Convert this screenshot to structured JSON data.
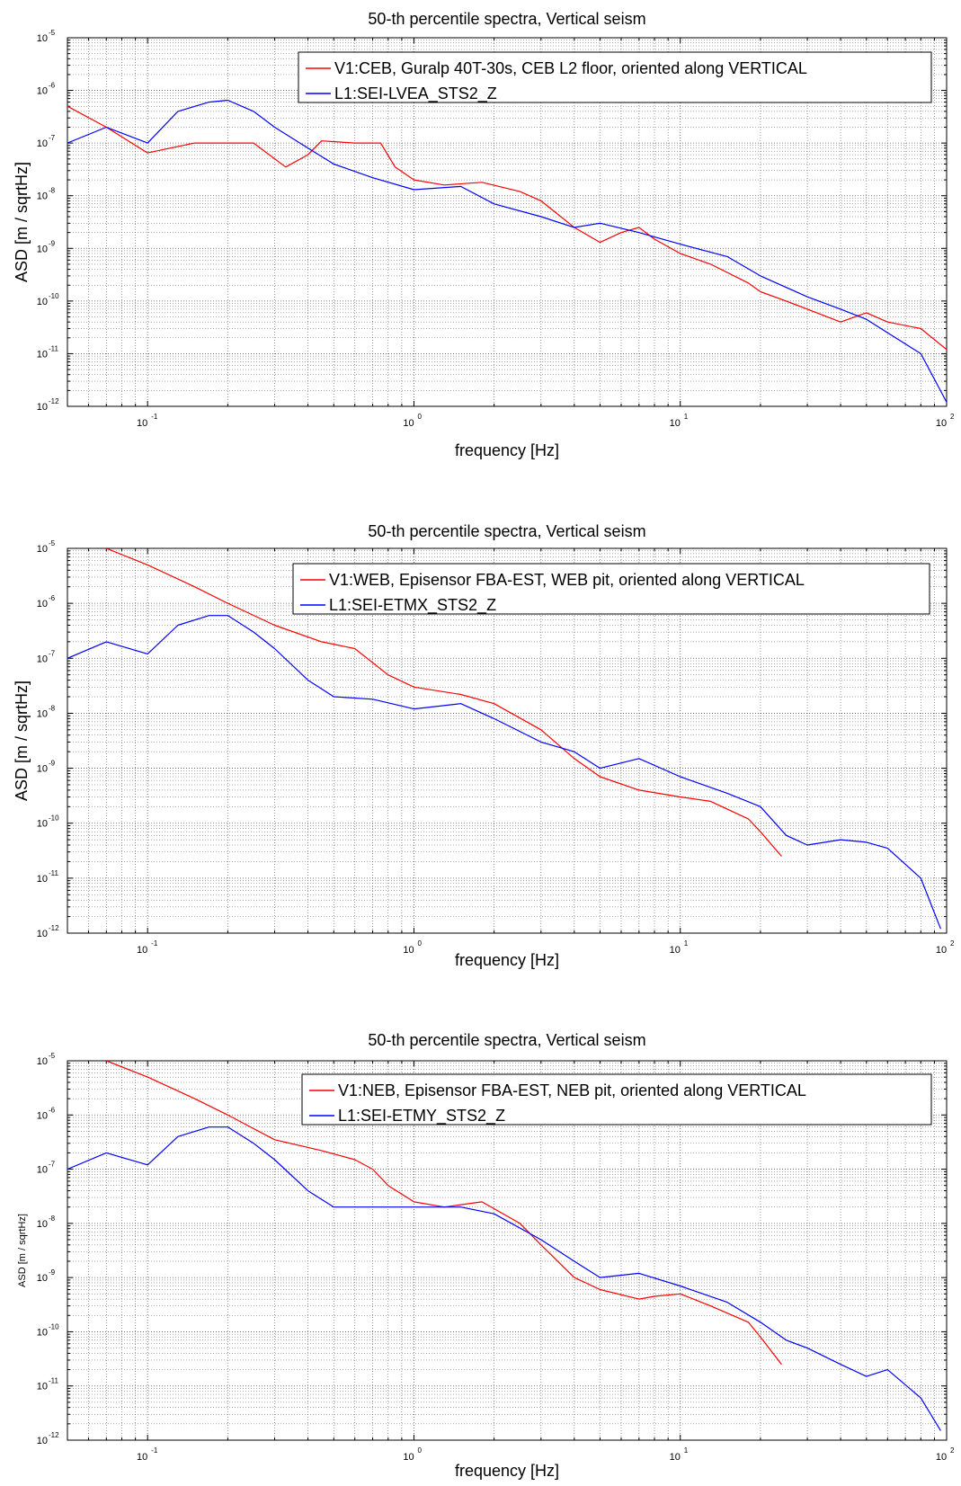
{
  "chart_data": [
    {
      "type": "line",
      "title": "50-th percentile spectra, Vertical seism",
      "xlabel": "frequency [Hz]",
      "ylabel": "ASD [m / sqrtHz]",
      "xscale": "log",
      "yscale": "log",
      "xlim": [
        0.05,
        100
      ],
      "ylim": [
        1e-12,
        1e-05
      ],
      "xticks": [
        {
          "base": "10",
          "exp": "-1"
        },
        {
          "base": "10",
          "exp": "0"
        },
        {
          "base": "10",
          "exp": "1"
        },
        {
          "base": "10",
          "exp": "2"
        }
      ],
      "yticks": [
        {
          "base": "10",
          "exp": "-5"
        },
        {
          "base": "10",
          "exp": "-6"
        },
        {
          "base": "10",
          "exp": "-7"
        },
        {
          "base": "10",
          "exp": "-8"
        },
        {
          "base": "10",
          "exp": "-9"
        },
        {
          "base": "10",
          "exp": "-10"
        },
        {
          "base": "10",
          "exp": "-11"
        },
        {
          "base": "10",
          "exp": "-12"
        }
      ],
      "grid": true,
      "legend_position": "top-right",
      "series": [
        {
          "name": "V1:CEB, Guralp 40T-30s, CEB L2 floor, oriented along VERTICAL",
          "color": "#ff0000",
          "x": [
            0.05,
            0.07,
            0.1,
            0.15,
            0.2,
            0.25,
            0.33,
            0.4,
            0.45,
            0.6,
            0.75,
            0.85,
            1.0,
            1.3,
            1.8,
            2.5,
            3.0,
            4.0,
            5.0,
            6.0,
            7.0,
            8.0,
            10,
            13,
            18,
            20,
            25,
            30,
            40,
            50,
            60,
            80,
            100
          ],
          "y": [
            5e-07,
            2e-07,
            6.5e-08,
            1e-07,
            1e-07,
            1e-07,
            3.5e-08,
            6e-08,
            1.1e-07,
            1e-07,
            1e-07,
            3.5e-08,
            2e-08,
            1.6e-08,
            1.8e-08,
            1.2e-08,
            8e-09,
            2.5e-09,
            1.3e-09,
            2e-09,
            2.5e-09,
            1.5e-09,
            8e-10,
            5e-10,
            2.2e-10,
            1.5e-10,
            1e-10,
            7e-11,
            4e-11,
            6e-11,
            4e-11,
            3e-11,
            1.2e-11
          ]
        },
        {
          "name": "L1:SEI-LVEA_STS2_Z",
          "color": "#0000ff",
          "x": [
            0.05,
            0.07,
            0.1,
            0.13,
            0.17,
            0.2,
            0.25,
            0.3,
            0.4,
            0.5,
            0.7,
            1.0,
            1.5,
            2.0,
            3.0,
            4.0,
            5.0,
            7.0,
            10,
            15,
            20,
            30,
            40,
            50,
            60,
            80,
            100
          ],
          "y": [
            1e-07,
            2e-07,
            1e-07,
            4e-07,
            6e-07,
            6.5e-07,
            4e-07,
            2e-07,
            8e-08,
            4e-08,
            2.2e-08,
            1.3e-08,
            1.5e-08,
            7e-09,
            4e-09,
            2.5e-09,
            3e-09,
            2e-09,
            1.2e-09,
            7e-10,
            3e-10,
            1.2e-10,
            7e-11,
            4.5e-11,
            2.5e-11,
            1e-11,
            1.2e-12
          ]
        }
      ]
    },
    {
      "type": "line",
      "title": "50-th percentile spectra, Vertical seism",
      "xlabel": "frequency [Hz]",
      "ylabel": "ASD [m / sqrtHz]",
      "xscale": "log",
      "yscale": "log",
      "xlim": [
        0.05,
        100
      ],
      "ylim": [
        1e-12,
        1e-05
      ],
      "xticks": [
        {
          "base": "10",
          "exp": "-1"
        },
        {
          "base": "10",
          "exp": "0"
        },
        {
          "base": "10",
          "exp": "1"
        },
        {
          "base": "10",
          "exp": "2"
        }
      ],
      "yticks": [
        {
          "base": "10",
          "exp": "-5"
        },
        {
          "base": "10",
          "exp": "-6"
        },
        {
          "base": "10",
          "exp": "-7"
        },
        {
          "base": "10",
          "exp": "-8"
        },
        {
          "base": "10",
          "exp": "-9"
        },
        {
          "base": "10",
          "exp": "-10"
        },
        {
          "base": "10",
          "exp": "-11"
        },
        {
          "base": "10",
          "exp": "-12"
        }
      ],
      "grid": true,
      "legend_position": "top-right",
      "series": [
        {
          "name": "V1:WEB, Episensor FBA-EST, WEB pit, oriented along VERTICAL",
          "color": "#ff0000",
          "x": [
            0.07,
            0.1,
            0.15,
            0.2,
            0.3,
            0.45,
            0.6,
            0.8,
            1.0,
            1.5,
            2.0,
            3.0,
            4.0,
            5.0,
            7.0,
            10,
            13,
            18,
            20,
            24
          ],
          "y": [
            1e-05,
            5e-06,
            2e-06,
            1e-06,
            4e-07,
            2e-07,
            1.5e-07,
            5e-08,
            3e-08,
            2.2e-08,
            1.5e-08,
            5e-09,
            1.5e-09,
            7e-10,
            4e-10,
            3e-10,
            2.5e-10,
            1.2e-10,
            7e-11,
            2.5e-11
          ]
        },
        {
          "name": "L1:SEI-ETMX_STS2_Z",
          "color": "#0000ff",
          "x": [
            0.05,
            0.07,
            0.1,
            0.13,
            0.17,
            0.2,
            0.25,
            0.3,
            0.4,
            0.5,
            0.7,
            1.0,
            1.5,
            2.0,
            3.0,
            4.0,
            5.0,
            7.0,
            10,
            15,
            20,
            25,
            30,
            40,
            50,
            60,
            80,
            95
          ],
          "y": [
            1e-07,
            2e-07,
            1.2e-07,
            4e-07,
            6e-07,
            6e-07,
            3e-07,
            1.5e-07,
            4e-08,
            2e-08,
            1.8e-08,
            1.2e-08,
            1.5e-08,
            8e-09,
            3e-09,
            2e-09,
            1e-09,
            1.5e-09,
            7e-10,
            3.5e-10,
            2e-10,
            6e-11,
            4e-11,
            5e-11,
            4.5e-11,
            3.5e-11,
            1e-11,
            1.2e-12
          ]
        }
      ]
    },
    {
      "type": "line",
      "title": "50-th percentile spectra, Vertical seism",
      "xlabel": "frequency [Hz]",
      "ylabel": "ASD [m / sqrtHz]",
      "xscale": "log",
      "yscale": "log",
      "xlim": [
        0.05,
        100
      ],
      "ylim": [
        1e-12,
        1e-05
      ],
      "xticks": [
        {
          "base": "10",
          "exp": "-1"
        },
        {
          "base": "10",
          "exp": "0"
        },
        {
          "base": "10",
          "exp": "1"
        },
        {
          "base": "10",
          "exp": "2"
        }
      ],
      "yticks": [
        {
          "base": "10",
          "exp": "-5"
        },
        {
          "base": "10",
          "exp": "-6"
        },
        {
          "base": "10",
          "exp": "-7"
        },
        {
          "base": "10",
          "exp": "-8"
        },
        {
          "base": "10",
          "exp": "-9"
        },
        {
          "base": "10",
          "exp": "-10"
        },
        {
          "base": "10",
          "exp": "-11"
        },
        {
          "base": "10",
          "exp": "-12"
        }
      ],
      "grid": true,
      "legend_position": "top-right",
      "series": [
        {
          "name": "V1:NEB, Episensor FBA-EST, NEB pit, oriented along VERTICAL",
          "color": "#ff0000",
          "x": [
            0.07,
            0.1,
            0.15,
            0.2,
            0.3,
            0.45,
            0.6,
            0.7,
            0.8,
            1.0,
            1.3,
            1.8,
            2.5,
            3.0,
            4.0,
            5.0,
            7.0,
            8.0,
            10,
            13,
            18,
            20,
            24
          ],
          "y": [
            1e-05,
            5e-06,
            2e-06,
            1e-06,
            3.5e-07,
            2.2e-07,
            1.5e-07,
            1e-07,
            5e-08,
            2.5e-08,
            2e-08,
            2.5e-08,
            1e-08,
            4e-09,
            1e-09,
            6e-10,
            4e-10,
            4.5e-10,
            5e-10,
            3e-10,
            1.5e-10,
            8e-11,
            2.5e-11
          ]
        },
        {
          "name": "L1:SEI-ETMY_STS2_Z",
          "color": "#0000ff",
          "x": [
            0.05,
            0.07,
            0.1,
            0.13,
            0.17,
            0.2,
            0.25,
            0.3,
            0.4,
            0.5,
            0.7,
            1.0,
            1.5,
            2.0,
            3.0,
            4.0,
            5.0,
            7.0,
            10,
            15,
            20,
            25,
            30,
            40,
            50,
            60,
            80,
            95
          ],
          "y": [
            1e-07,
            2e-07,
            1.2e-07,
            4e-07,
            6e-07,
            6e-07,
            3e-07,
            1.5e-07,
            4e-08,
            2e-08,
            2e-08,
            2e-08,
            2e-08,
            1.5e-08,
            5e-09,
            2e-09,
            1e-09,
            1.2e-09,
            7e-10,
            3.5e-10,
            1.5e-10,
            7e-11,
            5e-11,
            2.5e-11,
            1.5e-11,
            2e-11,
            6e-12,
            1.5e-12
          ]
        }
      ]
    }
  ]
}
